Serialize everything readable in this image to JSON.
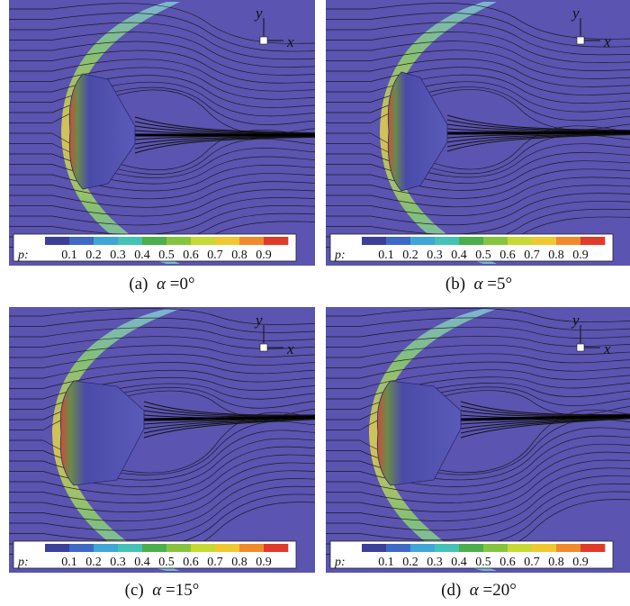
{
  "colorbar": {
    "variable": "p",
    "ticks": [
      "0.1",
      "0.2",
      "0.3",
      "0.4",
      "0.5",
      "0.6",
      "0.7",
      "0.8",
      "0.9"
    ],
    "colors": [
      "#3b3f9a",
      "#3e69c4",
      "#3fa6d6",
      "#44c2b6",
      "#4cae4c",
      "#86c440",
      "#c8d835",
      "#f0c832",
      "#f08a2c",
      "#e03a2a"
    ]
  },
  "axes": {
    "x": "x",
    "y": "y"
  },
  "colors": {
    "background": "#5b54b0",
    "body": "#4a4aa8",
    "streamline": "#111111"
  },
  "panels": [
    {
      "label": "(a)",
      "symbol": "α",
      "value": "=0°"
    },
    {
      "label": "(b)",
      "symbol": "α",
      "value": "=5°"
    },
    {
      "label": "(c)",
      "symbol": "α",
      "value": "=15°"
    },
    {
      "label": "(d)",
      "symbol": "α",
      "value": "=20°"
    }
  ]
}
